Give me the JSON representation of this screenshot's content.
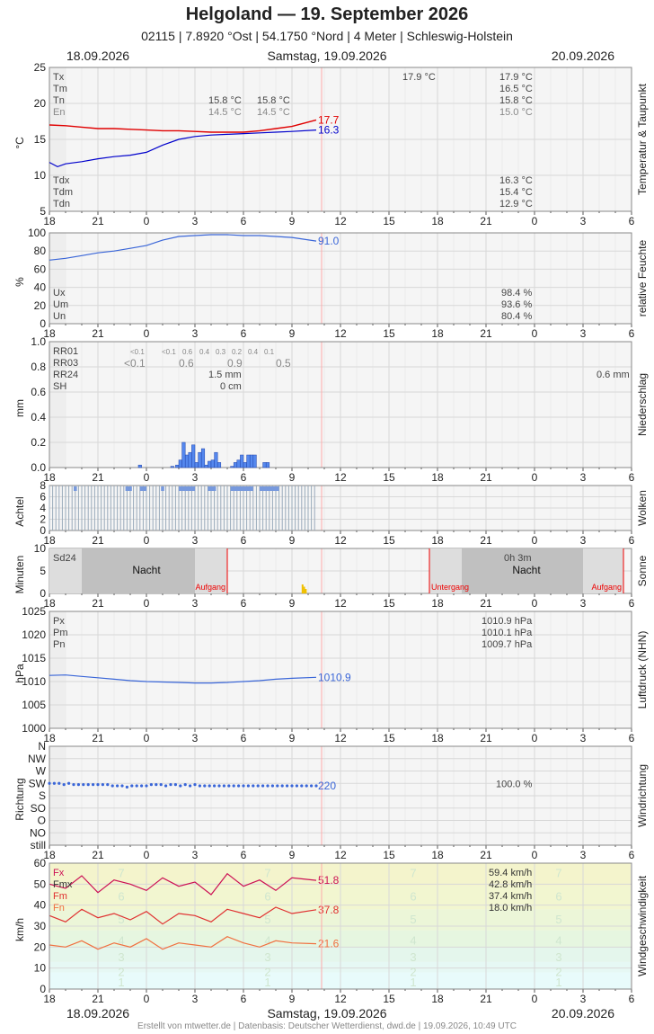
{
  "header": {
    "title": "Helgoland  —  19. September 2026",
    "subtitle": "02115  |  7.8920 °Ost  |  54.1750 °Nord  |  4 Meter  |  Schleswig-Holstein"
  },
  "dates": {
    "left": "18.09.2026",
    "center": "Samstag, 19.09.2026",
    "right": "20.09.2026"
  },
  "footer": "Erstellt von mtwetter.de | Datenbasis: Deutscher Wetterdienst, dwd.de | 19.09.2026, 10:49 UTC",
  "x_ticks": [
    "18",
    "21",
    "0",
    "3",
    "6",
    "9",
    "12",
    "15",
    "18",
    "21",
    "0",
    "3",
    "6"
  ],
  "colors": {
    "temp": "#e00000",
    "dew": "#0000cc",
    "blue": "#3a66d8",
    "grid": "#dddddd",
    "panelbg": "#f5f5f5",
    "nightbg": "#c0c0c0",
    "gust": "#cc1155",
    "mean": "#e03030",
    "min": "#f07040"
  },
  "chart_data": [
    {
      "type": "line",
      "name": "temperature",
      "ylabel": "°C",
      "side_label": "Temperatur & Taupunkt",
      "ylim": [
        5,
        25
      ],
      "y_ticks": [
        "25",
        "20",
        "15",
        "10",
        "5"
      ],
      "x_hours_from_18": true,
      "series": [
        {
          "name": "temperature",
          "end_label": "17.7",
          "x": [
            0,
            1,
            2,
            3,
            4,
            5,
            6,
            7,
            8,
            9,
            10,
            11,
            12,
            13,
            14,
            15,
            16.5
          ],
          "y": [
            17.0,
            16.9,
            16.7,
            16.5,
            16.5,
            16.4,
            16.3,
            16.2,
            16.2,
            16.1,
            16.0,
            16.0,
            16.0,
            16.2,
            16.5,
            16.8,
            17.7
          ]
        },
        {
          "name": "dewpoint",
          "end_label": "16.3",
          "x": [
            0,
            0.5,
            1,
            2,
            3,
            4,
            5,
            6,
            7,
            8,
            9,
            10,
            11,
            12,
            13,
            14,
            15,
            16.5
          ],
          "y": [
            11.8,
            11.2,
            11.6,
            11.9,
            12.3,
            12.6,
            12.8,
            13.2,
            14.2,
            15.0,
            15.4,
            15.6,
            15.7,
            15.8,
            15.9,
            16.0,
            16.1,
            16.3
          ]
        }
      ],
      "labels_top_left": [
        "Tx",
        "Tm",
        "Tn",
        "En"
      ],
      "labels_bottom_left": [
        "Tdx",
        "Tdm",
        "Tdn"
      ],
      "day1_values": {
        "tn_a": "15.8 °C",
        "tn_b": "15.8 °C",
        "en_a": "14.5 °C",
        "en_b": "14.5 °C",
        "tx_mid": "17.9 °C"
      },
      "day2_values": {
        "tx": "17.9 °C",
        "tm": "16.5 °C",
        "tn": "15.8 °C",
        "en": "15.0 °C",
        "tdx": "16.3 °C",
        "tdm": "15.4 °C",
        "tdn": "12.9 °C"
      }
    },
    {
      "type": "line",
      "name": "humidity",
      "ylabel": "%",
      "side_label": "relative Feuchte",
      "ylim": [
        0,
        100
      ],
      "y_ticks": [
        "100",
        "80",
        "60",
        "40",
        "20",
        "0"
      ],
      "series": [
        {
          "name": "humidity",
          "end_label": "91.0",
          "x": [
            0,
            1,
            2,
            3,
            4,
            5,
            6,
            7,
            8,
            9,
            10,
            11,
            12,
            13,
            14,
            15,
            16.5
          ],
          "y": [
            70,
            72,
            75,
            78,
            80,
            83,
            86,
            92,
            96,
            97,
            98,
            98,
            97,
            97,
            96,
            95,
            91
          ]
        }
      ],
      "labels": [
        "Ux",
        "Um",
        "Un"
      ],
      "day2_values": [
        "98.4 %",
        "93.6 %",
        "80.4 %"
      ]
    },
    {
      "type": "bar",
      "name": "precipitation",
      "ylabel": "mm",
      "side_label": "Niederschlag",
      "ylim": [
        0,
        1.0
      ],
      "y_ticks": [
        "1.0",
        "0.8",
        "0.6",
        "0.4",
        "0.2",
        "0.0"
      ],
      "labels": [
        "RR01",
        "RR03",
        "RR24",
        "SH"
      ],
      "rr01_values": [
        "<0.1",
        "<0.1",
        "0.6",
        "0.4",
        "0.3",
        "0.2",
        "0.4",
        "0.1"
      ],
      "rr03_values": [
        "<0.1",
        "0.6",
        "0.9",
        "0.5"
      ],
      "rr24": "1.5 mm",
      "sh": "0 cm",
      "day2_rr": "0.6 mm",
      "x": [
        5.5,
        7.5,
        7.8,
        8.0,
        8.2,
        8.4,
        8.6,
        8.8,
        9.0,
        9.2,
        9.4,
        9.6,
        9.8,
        10.0,
        10.2,
        10.4,
        11.2,
        11.4,
        11.6,
        11.8,
        12.0,
        12.2,
        12.4,
        12.6,
        13.2,
        13.4
      ],
      "values": [
        0.02,
        0.01,
        0.02,
        0.06,
        0.2,
        0.1,
        0.12,
        0.18,
        0.04,
        0.12,
        0.15,
        0.02,
        0.05,
        0.06,
        0.12,
        0.04,
        0.01,
        0.04,
        0.06,
        0.1,
        0.04,
        0.1,
        0.1,
        0.1,
        0.04,
        0.04
      ]
    },
    {
      "type": "bar",
      "name": "clouds",
      "ylabel": "Achtel",
      "side_label": "Wolken",
      "ylim": [
        0,
        8
      ],
      "y_ticks": [
        "8",
        "6",
        "4",
        "2",
        "0"
      ],
      "end_hour": 16.5,
      "value": 8,
      "high_segments": [
        [
          1.5,
          1.7
        ],
        [
          4.7,
          5.1
        ],
        [
          5.6,
          6.0
        ],
        [
          6.9,
          7.1
        ],
        [
          8.0,
          9.0
        ],
        [
          9.8,
          10.3
        ],
        [
          11.2,
          12.6
        ],
        [
          13.0,
          14.2
        ]
      ]
    },
    {
      "type": "bar",
      "name": "sunshine",
      "ylabel": "Minuten",
      "side_label": "Sonne",
      "ylim": [
        0,
        10
      ],
      "y_ticks": [
        "10",
        "5",
        "0"
      ],
      "sd24": "Sd24",
      "day2_value": "0h 3m",
      "night_label": "Nacht",
      "sunrise_label": "Aufgang",
      "sunset_label": "Untergang",
      "x": [
        15.6,
        15.7,
        15.8
      ],
      "values": [
        2,
        1.5,
        1
      ]
    },
    {
      "type": "line",
      "name": "pressure",
      "ylabel": "hPa",
      "side_label": "Luftdruck (NHN)",
      "ylim": [
        1000,
        1025
      ],
      "y_ticks": [
        "1025",
        "1020",
        "1015",
        "1010",
        "1005",
        "1000"
      ],
      "series": [
        {
          "name": "pressure",
          "end_label": "1010.9",
          "x": [
            0,
            1,
            2,
            3,
            4,
            5,
            6,
            7,
            8,
            9,
            10,
            11,
            12,
            13,
            14,
            15,
            16.5
          ],
          "y": [
            1011.3,
            1011.4,
            1011.1,
            1010.8,
            1010.5,
            1010.2,
            1010.0,
            1009.9,
            1009.8,
            1009.7,
            1009.7,
            1009.8,
            1010.0,
            1010.2,
            1010.5,
            1010.7,
            1010.9
          ]
        }
      ],
      "labels": [
        "Px",
        "Pm",
        "Pn"
      ],
      "day2_values": [
        "1010.9 hPa",
        "1010.1 hPa",
        "1009.7 hPa"
      ]
    },
    {
      "type": "scatter",
      "name": "wind_direction",
      "ylabel": "Richtung",
      "side_label": "Windrichtung",
      "y_ticks": [
        "N",
        "NW",
        "W",
        "SW",
        "S",
        "SO",
        "O",
        "NO",
        "still"
      ],
      "end_label": "220",
      "day2_value": "100.0 %",
      "x": [
        0,
        0.3,
        0.6,
        0.9,
        1.2,
        1.5,
        1.8,
        2.1,
        2.4,
        2.7,
        3.0,
        3.3,
        3.6,
        3.9,
        4.2,
        4.5,
        4.8,
        5.1,
        5.4,
        5.7,
        6.0,
        6.3,
        6.6,
        6.9,
        7.2,
        7.5,
        7.8,
        8.1,
        8.4,
        8.7,
        9.0,
        9.3,
        9.6,
        9.9,
        10.2,
        10.5,
        10.8,
        11.1,
        11.4,
        11.7,
        12.0,
        12.3,
        12.6,
        12.9,
        13.2,
        13.5,
        13.8,
        14.1,
        14.4,
        14.7,
        15.0,
        15.3,
        15.6,
        15.9,
        16.2,
        16.5
      ],
      "y": [
        3,
        3,
        3,
        3.1,
        3,
        3.1,
        3.1,
        3.1,
        3.1,
        3.1,
        3.1,
        3.1,
        3.1,
        3.2,
        3.2,
        3.2,
        3.3,
        3.2,
        3.2,
        3.2,
        3.2,
        3.1,
        3.1,
        3.1,
        3.2,
        3.1,
        3.1,
        3.2,
        3.1,
        3.2,
        3.1,
        3.2,
        3.2,
        3.2,
        3.2,
        3.2,
        3.2,
        3.2,
        3.2,
        3.2,
        3.2,
        3.2,
        3.2,
        3.2,
        3.2,
        3.2,
        3.2,
        3.2,
        3.2,
        3.2,
        3.2,
        3.2,
        3.2,
        3.2,
        3.2,
        3.2
      ]
    },
    {
      "type": "line",
      "name": "wind_speed",
      "ylabel": "km/h",
      "side_label": "Windgeschwindigkeit",
      "ylim": [
        0,
        60
      ],
      "y_ticks": [
        "60",
        "50",
        "40",
        "30",
        "20",
        "10",
        "0"
      ],
      "labels": [
        "Fx",
        "Fmx",
        "Fm",
        "Fn"
      ],
      "day2_values": [
        "59.4 km/h",
        "42.8 km/h",
        "37.4 km/h",
        "18.0 km/h"
      ],
      "bft_labels": [
        "1",
        "2",
        "3",
        "4",
        "5",
        "6",
        "7"
      ],
      "bft_kmh": [
        3,
        8,
        15,
        23,
        33,
        44,
        55
      ],
      "series": [
        {
          "name": "Fx",
          "end_label": "51.8",
          "x": [
            0,
            1,
            2,
            3,
            4,
            5,
            6,
            7,
            8,
            9,
            10,
            11,
            12,
            13,
            14,
            15,
            16.5
          ],
          "y": [
            50,
            48,
            54,
            46,
            52,
            50,
            47,
            53,
            49,
            51,
            45,
            55,
            49,
            52,
            47,
            53,
            51.8
          ]
        },
        {
          "name": "Fm",
          "end_label": "37.8",
          "x": [
            0,
            1,
            2,
            3,
            4,
            5,
            6,
            7,
            8,
            9,
            10,
            11,
            12,
            13,
            14,
            15,
            16.5
          ],
          "y": [
            35,
            32,
            38,
            34,
            36,
            33,
            37,
            31,
            36,
            35,
            32,
            38,
            36,
            34,
            39,
            36,
            37.8
          ]
        },
        {
          "name": "Fn",
          "end_label": "21.6",
          "x": [
            0,
            1,
            2,
            3,
            4,
            5,
            6,
            7,
            8,
            9,
            10,
            11,
            12,
            13,
            14,
            15,
            16.5
          ],
          "y": [
            21,
            20,
            23,
            19,
            22,
            20,
            24,
            19,
            22,
            21,
            20,
            25,
            22,
            20,
            23,
            22,
            21.6
          ]
        }
      ]
    }
  ]
}
